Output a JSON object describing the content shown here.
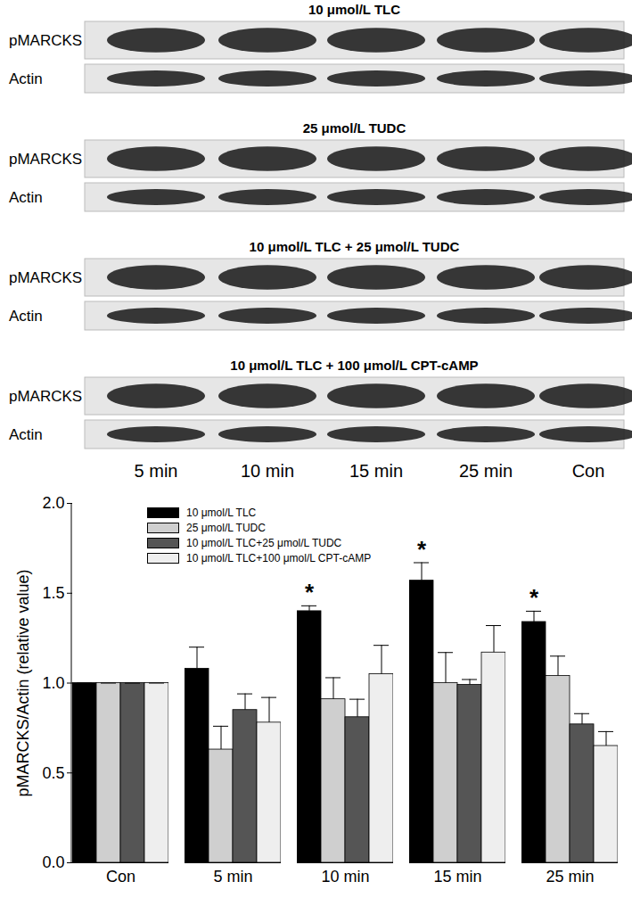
{
  "blots": {
    "panels": [
      {
        "title": "10 μmol/L TLC",
        "rows": [
          "pMARCKS",
          "Actin"
        ]
      },
      {
        "title": "25 μmol/L TUDC",
        "rows": [
          "pMARCKS",
          "Actin"
        ]
      },
      {
        "title": "10 μmol/L TLC + 25 μmol/L TUDC",
        "rows": [
          "pMARCKS",
          "Actin"
        ]
      },
      {
        "title": "10 μmol/L TLC + 100 μmol/L CPT-cAMP",
        "rows": [
          "pMARCKS",
          "Actin"
        ]
      }
    ],
    "lanes": [
      "5 min",
      "10 min",
      "15 min",
      "25 min",
      "Con"
    ]
  },
  "chart_data": {
    "type": "bar",
    "categories": [
      "Con",
      "5 min",
      "10 min",
      "15 min",
      "25 min"
    ],
    "y_label": "pMARCKS/Actin (relative value)",
    "ylim": [
      0,
      2
    ],
    "yticks": [
      {
        "value": 0,
        "label": "0.0"
      },
      {
        "value": 0.5,
        "label": "0.5"
      },
      {
        "value": 1,
        "label": "1.0"
      },
      {
        "value": 1.5,
        "label": "1.5"
      },
      {
        "value": 2,
        "label": "2.0"
      }
    ],
    "legend": "top-left",
    "series": [
      {
        "name": "10 μmol/L TLC",
        "color": "#000000",
        "values": [
          1.0,
          1.08,
          1.4,
          1.57,
          1.34
        ],
        "errors": [
          0,
          0.12,
          0.03,
          0.1,
          0.06
        ]
      },
      {
        "name": "25 μmol/L TUDC",
        "color": "#cfcfcf",
        "values": [
          1.0,
          0.63,
          0.91,
          1.0,
          1.04
        ],
        "errors": [
          0,
          0.13,
          0.12,
          0.17,
          0.11
        ]
      },
      {
        "name": "10 μmol/L TLC+25 μmol/L TUDC",
        "color": "#555555",
        "values": [
          1.0,
          0.85,
          0.81,
          0.99,
          0.77
        ],
        "errors": [
          0,
          0.09,
          0.1,
          0.03,
          0.06
        ]
      },
      {
        "name": "10 μmol/L TLC+100 μmol/L CPT-cAMP",
        "color": "#eeeeee",
        "values": [
          1.0,
          0.78,
          1.05,
          1.17,
          0.65
        ],
        "errors": [
          0,
          0.14,
          0.16,
          0.15,
          0.08
        ]
      }
    ],
    "annotations": [
      {
        "text": "*",
        "series": "10 μmol/L TLC",
        "category": "10 min"
      },
      {
        "text": "*",
        "series": "10 μmol/L TLC",
        "category": "15 min"
      },
      {
        "text": "*",
        "series": "10 μmol/L TLC",
        "category": "25 min"
      }
    ]
  }
}
